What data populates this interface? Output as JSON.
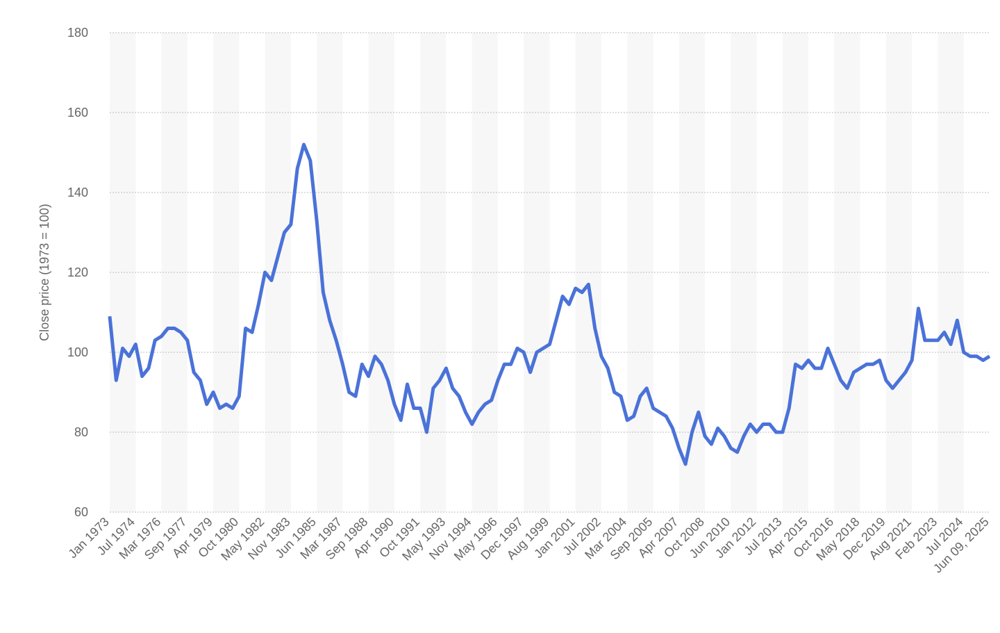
{
  "chart_data": {
    "type": "line",
    "y_label": "Close price (1973 = 100)",
    "categories": [
      "Jan 1973",
      null,
      null,
      null,
      "Jul 1974",
      null,
      null,
      null,
      "Mar 1976",
      null,
      null,
      null,
      "Sep 1977",
      null,
      null,
      null,
      "Apr 1979",
      null,
      null,
      null,
      "Oct 1980",
      null,
      null,
      null,
      "May 1982",
      null,
      null,
      null,
      "Nov 1983",
      null,
      null,
      null,
      "Jun 1985",
      null,
      null,
      null,
      "Mar 1987",
      null,
      null,
      null,
      "Sep 1988",
      null,
      null,
      null,
      "Apr 1990",
      null,
      null,
      null,
      "Oct 1991",
      null,
      null,
      null,
      "May 1993",
      null,
      null,
      null,
      "Nov 1994",
      null,
      null,
      null,
      "May 1996",
      null,
      null,
      null,
      "Dec 1997",
      null,
      null,
      null,
      "Aug 1999",
      null,
      null,
      null,
      "Jan 2001",
      null,
      null,
      null,
      "Jul 2002",
      null,
      null,
      null,
      "Mar 2004",
      null,
      null,
      null,
      "Sep 2005",
      null,
      null,
      null,
      "Apr 2007",
      null,
      null,
      null,
      "Oct 2008",
      null,
      null,
      null,
      "Jun 2010",
      null,
      null,
      null,
      "Jan 2012",
      null,
      null,
      null,
      "Jul 2013",
      null,
      null,
      null,
      "Apr 2015",
      null,
      null,
      null,
      "Oct 2016",
      null,
      null,
      null,
      "May 2018",
      null,
      null,
      null,
      "Dec 2019",
      null,
      null,
      null,
      "Aug 2021",
      null,
      null,
      null,
      "Feb 2023",
      null,
      null,
      null,
      "Jul 2024",
      null,
      null,
      null,
      "Jun 09, 2025"
    ],
    "values": [
      109,
      93,
      101,
      99,
      102,
      94,
      96,
      103,
      104,
      106,
      106,
      105,
      103,
      95,
      93,
      87,
      90,
      86,
      87,
      86,
      89,
      106,
      105,
      112,
      120,
      118,
      124,
      130,
      132,
      146,
      152,
      148,
      133,
      115,
      108,
      103,
      97,
      90,
      89,
      97,
      94,
      99,
      97,
      93,
      87,
      83,
      92,
      86,
      86,
      80,
      91,
      93,
      96,
      91,
      89,
      85,
      82,
      85,
      87,
      88,
      93,
      97,
      97,
      101,
      100,
      95,
      100,
      101,
      102,
      108,
      114,
      112,
      116,
      115,
      117,
      106,
      99,
      96,
      90,
      89,
      83,
      84,
      89,
      91,
      86,
      85,
      84,
      81,
      76,
      72,
      80,
      85,
      79,
      77,
      81,
      79,
      76,
      75,
      79,
      82,
      80,
      82,
      82,
      80,
      80,
      86,
      97,
      96,
      98,
      96,
      96,
      101,
      97,
      93,
      91,
      95,
      96,
      97,
      97,
      98,
      93,
      91,
      93,
      95,
      98,
      111,
      103,
      103,
      103,
      105,
      102,
      108,
      100,
      99,
      99,
      98,
      99
    ],
    "color": "#4a72d8",
    "ylim": [
      60,
      180
    ],
    "yticks": [
      60,
      80,
      100,
      120,
      140,
      160,
      180
    ],
    "grid": true
  }
}
